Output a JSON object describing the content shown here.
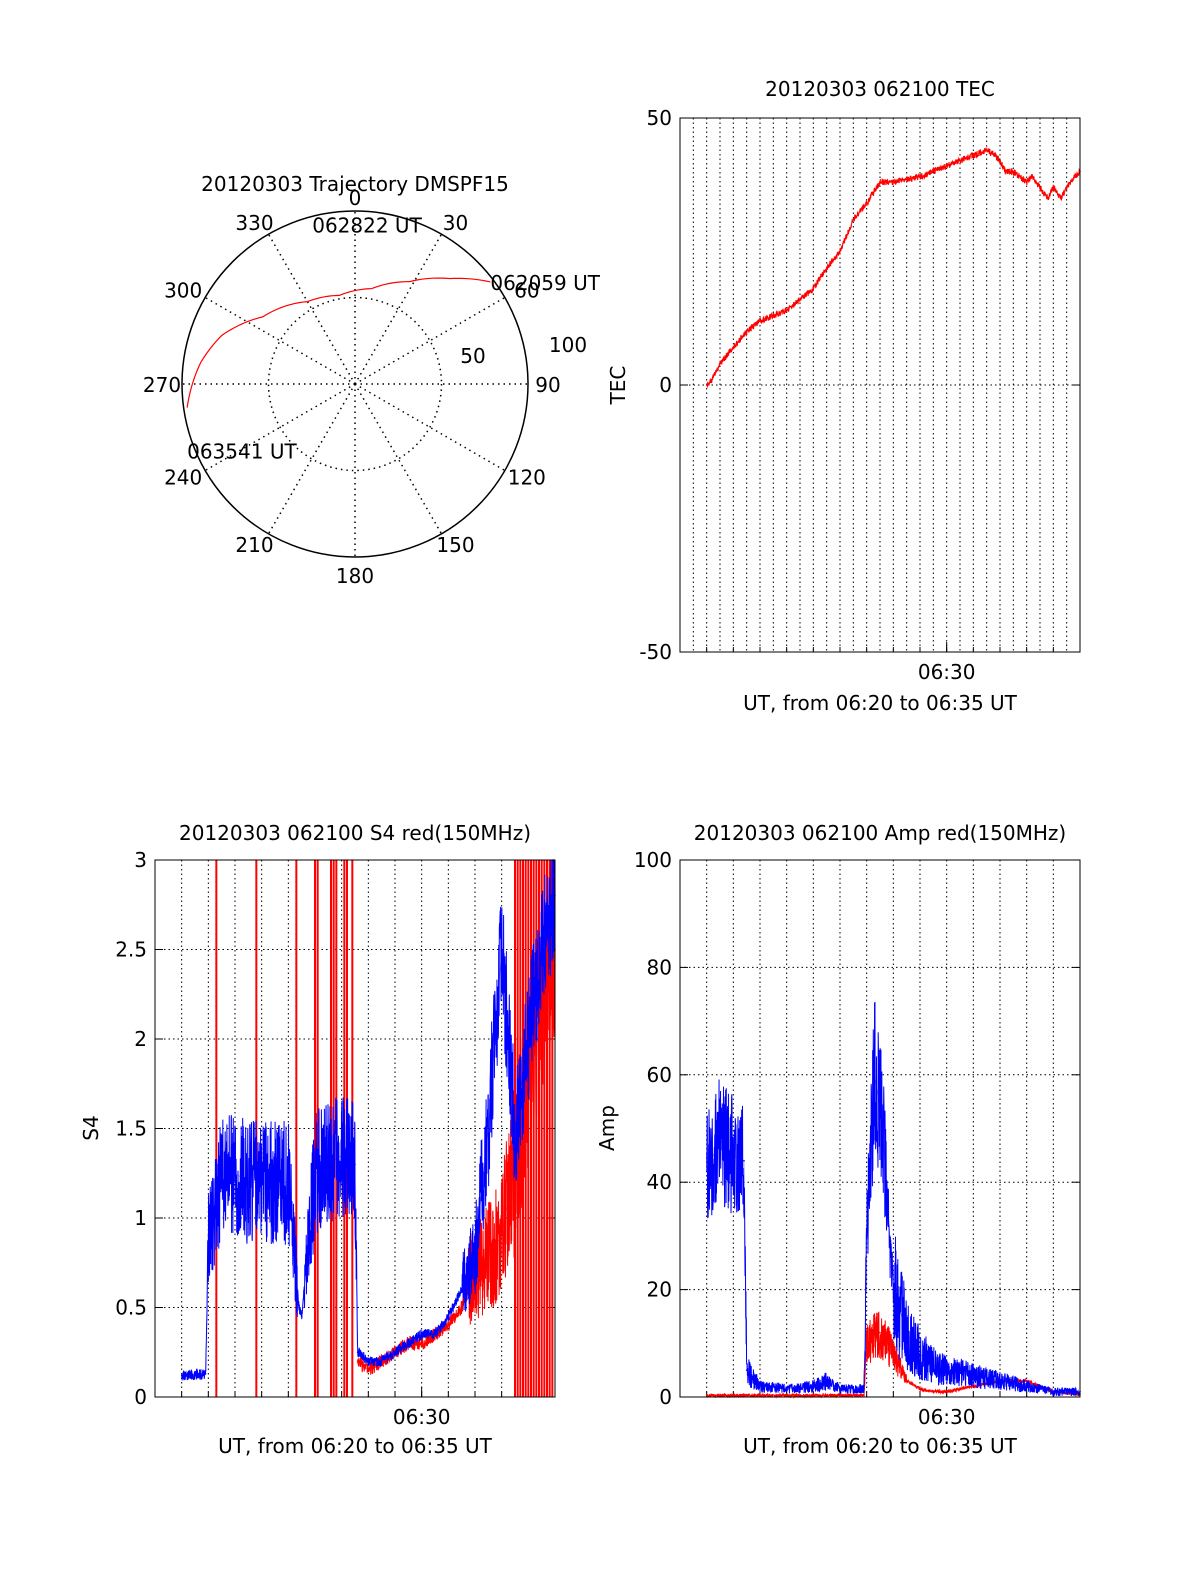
{
  "colors": {
    "red": "#ff0000",
    "blue": "#0000ff",
    "axis": "#000000",
    "grid": "#000000"
  },
  "chart_data": [
    {
      "id": "trajectory",
      "type": "polar",
      "title": "20120303 Trajectory DMSPF15",
      "azimuth_labels": [
        "0",
        "30",
        "60",
        "90",
        "120",
        "150",
        "180",
        "210",
        "240",
        "270",
        "300",
        "330"
      ],
      "azimuth_values": [
        0,
        30,
        60,
        90,
        120,
        150,
        180,
        210,
        240,
        270,
        300,
        330
      ],
      "radial_labels": [
        "50",
        "100"
      ],
      "radial_max": 100,
      "track": {
        "color": "red",
        "points": [
          {
            "az": 53,
            "r": 98
          },
          {
            "az": 42,
            "r": 82
          },
          {
            "az": 28,
            "r": 67
          },
          {
            "az": 10,
            "r": 56
          },
          {
            "az": 350,
            "r": 52
          },
          {
            "az": 330,
            "r": 55
          },
          {
            "az": 306,
            "r": 66
          },
          {
            "az": 290,
            "r": 82
          },
          {
            "az": 278,
            "r": 90
          },
          {
            "az": 262,
            "r": 98
          }
        ]
      },
      "annotations": [
        {
          "text": "062059 UT",
          "az": 53,
          "r": 98
        },
        {
          "text": "062822 UT",
          "az": 0,
          "r": 50
        },
        {
          "text": "063541 UT",
          "az": 262,
          "r": 98
        }
      ]
    },
    {
      "id": "tec",
      "type": "line",
      "title": "20120303 062100 TEC",
      "xlabel": "UT, from 06:20 to 06:35 UT",
      "ylabel": "TEC",
      "xlim": [
        20.0,
        35.0
      ],
      "ylim": [
        -50,
        50
      ],
      "yticks": [
        -50,
        0,
        50
      ],
      "xtick_labels": [
        {
          "at": 30,
          "label": "06:30"
        }
      ],
      "grid_x_step": 0.5,
      "series": [
        {
          "name": "TEC",
          "color": "red",
          "x": [
            21.0,
            21.2,
            21.5,
            22.0,
            22.5,
            23.0,
            23.5,
            24.0,
            24.5,
            25.0,
            25.5,
            26.0,
            26.5,
            27.0,
            27.5,
            28.0,
            28.5,
            29.0,
            29.5,
            30.0,
            30.5,
            31.0,
            31.5,
            31.8,
            32.0,
            32.2,
            32.5,
            33.0,
            33.2,
            33.5,
            33.8,
            34.0,
            34.3,
            34.5,
            34.8,
            35.0
          ],
          "y": [
            0,
            1,
            4,
            7,
            10,
            12,
            13,
            14,
            16,
            18,
            22,
            25,
            31,
            34,
            38,
            38,
            38.5,
            39,
            40,
            41,
            42,
            43,
            44,
            43,
            42,
            40,
            40,
            38,
            39,
            37,
            35,
            37,
            35,
            37,
            39,
            40
          ]
        }
      ]
    },
    {
      "id": "s4",
      "type": "line",
      "title": "20120303 062100 S4 red(150MHz)",
      "xlabel": "UT, from 06:20 to 06:35 UT",
      "ylabel": "S4",
      "xlim": [
        20.0,
        35.0
      ],
      "ylim": [
        0,
        3
      ],
      "yticks": [
        0,
        0.5,
        1,
        1.5,
        2,
        2.5,
        3
      ],
      "ytick_labels": [
        "0",
        "0.5",
        "1",
        "1.5",
        "2",
        "2.5",
        "3"
      ],
      "xtick_labels": [
        {
          "at": 30,
          "label": "06:30"
        }
      ],
      "grid_x_step": 1.0,
      "spikes": {
        "color": "red",
        "x": [
          22.3,
          23.8,
          25.3,
          26.0,
          26.1,
          26.6,
          26.7,
          26.8,
          27.1,
          27.2,
          27.4,
          33.5,
          33.6,
          33.7,
          33.8,
          33.9,
          34.0,
          34.1,
          34.2,
          34.3,
          34.4,
          34.5,
          34.6,
          34.7,
          34.8,
          34.9
        ]
      },
      "series": [
        {
          "name": "S4 red",
          "color": "red",
          "x": [
            27.6,
            28.0,
            28.5,
            29.0,
            29.5,
            30.0,
            30.5,
            31.0,
            31.5,
            32.0,
            32.5,
            33.0,
            33.5,
            34.0,
            34.5,
            35.0
          ],
          "y": [
            0.2,
            0.15,
            0.2,
            0.25,
            0.3,
            0.3,
            0.35,
            0.4,
            0.5,
            0.7,
            0.8,
            0.9,
            1.3,
            1.8,
            2.2,
            2.5
          ]
        },
        {
          "name": "S4 blue",
          "color": "blue",
          "x": [
            21.0,
            21.9,
            22.0,
            22.5,
            23.0,
            23.5,
            24.0,
            24.5,
            25.0,
            25.4,
            25.5,
            26.0,
            26.5,
            27.0,
            27.5,
            27.6,
            28.0,
            28.5,
            29.0,
            29.5,
            30.0,
            30.5,
            31.0,
            31.5,
            32.0,
            32.5,
            33.0,
            33.5,
            34.0,
            34.5,
            35.0
          ],
          "y": [
            0.12,
            0.13,
            0.9,
            1.2,
            1.25,
            1.2,
            1.2,
            1.2,
            1.2,
            0.5,
            0.45,
            1.25,
            1.3,
            1.35,
            1.3,
            0.25,
            0.2,
            0.2,
            0.25,
            0.3,
            0.35,
            0.35,
            0.45,
            0.6,
            0.8,
            1.5,
            2.5,
            1.5,
            2.0,
            2.5,
            2.8
          ]
        }
      ]
    },
    {
      "id": "amp",
      "type": "line",
      "title": "20120303 062100 Amp red(150MHz)",
      "xlabel": "UT, from 06:20 to 06:35 UT",
      "ylabel": "Amp",
      "xlim": [
        20.0,
        35.0
      ],
      "ylim": [
        0,
        100
      ],
      "yticks": [
        0,
        20,
        40,
        60,
        80,
        100
      ],
      "ytick_labels": [
        "0",
        "20",
        "40",
        "60",
        "80",
        "100"
      ],
      "xtick_labels": [
        {
          "at": 30,
          "label": "06:30"
        }
      ],
      "grid_x_step": 1.0,
      "series": [
        {
          "name": "Amp red",
          "color": "red",
          "x": [
            21.0,
            22.0,
            26.9,
            27.0,
            27.5,
            28.0,
            28.5,
            29.0,
            29.5,
            30.0,
            31.0,
            32.0,
            33.0,
            33.5,
            34.0,
            35.0
          ],
          "y": [
            0.3,
            0.3,
            0.3,
            10,
            12,
            8,
            3,
            1.5,
            1,
            1,
            2,
            3,
            3,
            2,
            1,
            0.5
          ]
        },
        {
          "name": "Amp blue",
          "color": "blue",
          "x": [
            21.0,
            21.5,
            22.0,
            22.4,
            22.5,
            23.0,
            24.0,
            25.0,
            25.5,
            26.0,
            26.5,
            26.9,
            27.0,
            27.3,
            27.6,
            28.0,
            28.5,
            29.0,
            29.5,
            30.0,
            31.0,
            32.0,
            33.0,
            34.0,
            35.0
          ],
          "y": [
            42,
            48,
            45,
            44,
            5,
            2,
            1.5,
            2,
            3,
            1.5,
            1.5,
            1.5,
            30,
            60,
            50,
            20,
            12,
            8,
            6,
            5,
            4,
            3,
            2,
            1,
            1
          ]
        }
      ]
    }
  ]
}
